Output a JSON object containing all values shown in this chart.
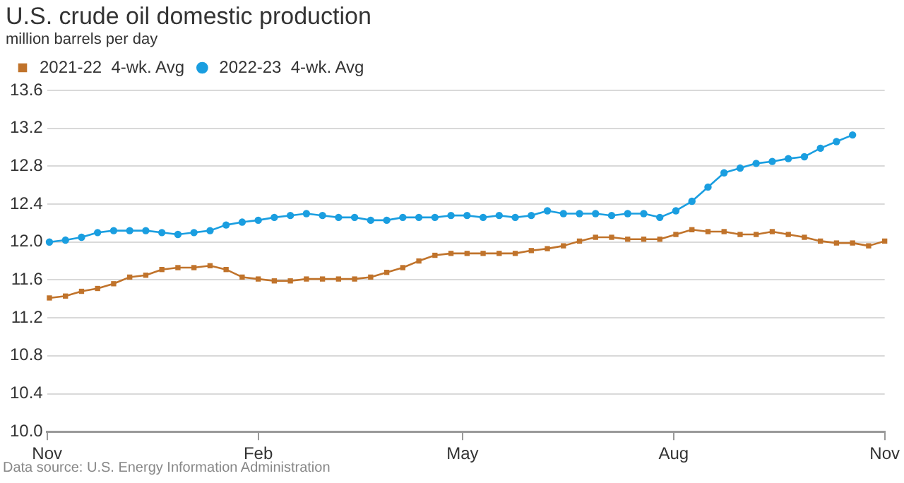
{
  "chart_data": {
    "type": "line",
    "title": "U.S. crude oil domestic production",
    "subtitle": "million barrels per day",
    "x": [
      "2021-11-02",
      "2021-11-09",
      "2021-11-16",
      "2021-11-23",
      "2021-11-30",
      "2021-12-07",
      "2021-12-14",
      "2021-12-21",
      "2021-12-28",
      "2022-01-04",
      "2022-01-11",
      "2022-01-18",
      "2022-01-25",
      "2022-02-01",
      "2022-02-08",
      "2022-02-15",
      "2022-02-22",
      "2022-03-01",
      "2022-03-08",
      "2022-03-15",
      "2022-03-22",
      "2022-03-29",
      "2022-04-05",
      "2022-04-12",
      "2022-04-19",
      "2022-04-26",
      "2022-05-03",
      "2022-05-10",
      "2022-05-17",
      "2022-05-24",
      "2022-05-31",
      "2022-06-07",
      "2022-06-14",
      "2022-06-21",
      "2022-06-28",
      "2022-07-05",
      "2022-07-12",
      "2022-07-19",
      "2022-07-26",
      "2022-08-02",
      "2022-08-09",
      "2022-08-16",
      "2022-08-23",
      "2022-08-30",
      "2022-09-06",
      "2022-09-13",
      "2022-09-20",
      "2022-09-27",
      "2022-10-04",
      "2022-10-11",
      "2022-10-18",
      "2022-10-25",
      "2022-11-01"
    ],
    "series": [
      {
        "name": "2021-22  4-wk. Avg",
        "color": "#c0732b",
        "marker": "square",
        "values": [
          11.41,
          11.43,
          11.48,
          11.51,
          11.56,
          11.63,
          11.65,
          11.71,
          11.73,
          11.73,
          11.75,
          11.71,
          11.63,
          11.61,
          11.59,
          11.59,
          11.61,
          11.61,
          11.61,
          11.61,
          11.63,
          11.68,
          11.73,
          11.8,
          11.86,
          11.88,
          11.88,
          11.88,
          11.88,
          11.88,
          11.91,
          11.93,
          11.96,
          12.01,
          12.05,
          12.05,
          12.03,
          12.03,
          12.03,
          12.08,
          12.13,
          12.11,
          12.11,
          12.08,
          12.08,
          12.11,
          12.08,
          12.05,
          12.01,
          11.99,
          11.99,
          11.96,
          12.01
        ]
      },
      {
        "name": "2022-23  4-wk. Avg",
        "color": "#1a9ee0",
        "marker": "circle",
        "values": [
          12.0,
          12.02,
          12.05,
          12.1,
          12.12,
          12.12,
          12.12,
          12.1,
          12.08,
          12.1,
          12.12,
          12.18,
          12.21,
          12.23,
          12.26,
          12.28,
          12.3,
          12.28,
          12.26,
          12.26,
          12.23,
          12.23,
          12.26,
          12.26,
          12.26,
          12.28,
          12.28,
          12.26,
          12.28,
          12.26,
          12.28,
          12.33,
          12.3,
          12.3,
          12.3,
          12.28,
          12.3,
          12.3,
          12.26,
          12.33,
          12.43,
          12.58,
          12.73,
          12.78,
          12.83,
          12.85,
          12.88,
          12.9,
          12.99,
          13.06,
          13.13,
          null,
          null
        ]
      }
    ],
    "xlim": [
      "2021-11-01",
      "2022-11-01"
    ],
    "xticks": [
      {
        "value": "2021-11-01",
        "label": "Nov"
      },
      {
        "value": "2022-02-01",
        "label": "Feb"
      },
      {
        "value": "2022-05-01",
        "label": "May"
      },
      {
        "value": "2022-08-01",
        "label": "Aug"
      },
      {
        "value": "2022-11-01",
        "label": "Nov"
      }
    ],
    "ylim": [
      10.0,
      13.6
    ],
    "yticks": [
      {
        "value": 10.0,
        "label": "10.0"
      },
      {
        "value": 10.4,
        "label": "10.4"
      },
      {
        "value": 10.8,
        "label": "10.8"
      },
      {
        "value": 11.2,
        "label": "11.2"
      },
      {
        "value": 11.6,
        "label": "11.6"
      },
      {
        "value": 12.0,
        "label": "12.0"
      },
      {
        "value": 12.4,
        "label": "12.4"
      },
      {
        "value": 12.8,
        "label": "12.8"
      },
      {
        "value": 13.2,
        "label": "13.2"
      },
      {
        "value": 13.6,
        "label": "13.6"
      }
    ],
    "grid": "y",
    "legend": "top left",
    "annotations": [
      "Data source: U.S. Energy Information Administration"
    ]
  }
}
